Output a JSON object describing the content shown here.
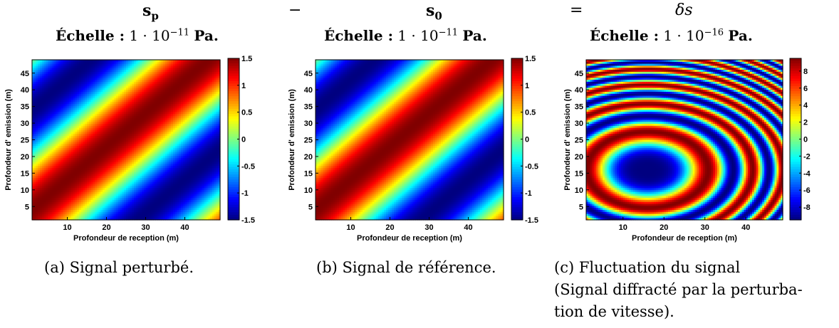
{
  "headers": [
    {
      "symbol": "s",
      "sub": "p",
      "op": "−",
      "scale_word": "Échelle :",
      "scale_base": "1 · 10",
      "scale_exp": "−11",
      "scale_unit": "Pa."
    },
    {
      "symbol": "s",
      "sub": "0",
      "op": "=",
      "scale_word": "Échelle :",
      "scale_base": "1 · 10",
      "scale_exp": "−11",
      "scale_unit": "Pa."
    },
    {
      "symbol": "δs",
      "sub": "",
      "op": "",
      "scale_word": "Échelle :",
      "scale_base": "1 · 10",
      "scale_exp": "−16",
      "scale_unit": "Pa."
    }
  ],
  "captions": [
    {
      "label": "(a) Signal perturbé."
    },
    {
      "label": "(b) Signal de référence."
    },
    {
      "label": "(c) Fluctuation du signal",
      "line2": "(Signal diffracté par la perturba-",
      "line3": "tion de vitesse)."
    }
  ],
  "chart_data": [
    {
      "type": "heatmap",
      "title": "",
      "xlabel": "Profondeur de reception (m)",
      "ylabel": "Profondeur d' emission (m)",
      "xlim": [
        1,
        49
      ],
      "ylim": [
        1,
        49
      ],
      "xticks": [
        10,
        20,
        30,
        40
      ],
      "yticks": [
        5,
        10,
        15,
        20,
        25,
        30,
        35,
        40,
        45
      ],
      "colorbar": {
        "range": [
          -1.5,
          1.5
        ],
        "ticks": [
          "1.5",
          "1",
          "0.5",
          "0",
          "-0.5",
          "-1",
          "-1.5"
        ]
      },
      "colormap": "jet",
      "field": "cos(2π(x−y+3)/60)·1.5"
    },
    {
      "type": "heatmap",
      "title": "",
      "xlabel": "Profondeur de reception (m)",
      "ylabel": "Profondeur d' emission (m)",
      "xlim": [
        1,
        49
      ],
      "ylim": [
        1,
        49
      ],
      "xticks": [
        10,
        20,
        30,
        40
      ],
      "yticks": [
        5,
        10,
        15,
        20,
        25,
        30,
        35,
        40,
        45
      ],
      "colorbar": {
        "range": [
          -1.5,
          1.5
        ],
        "ticks": [
          "1.5",
          "1",
          "0.5",
          "0",
          "-0.5",
          "-1",
          "-1.5"
        ]
      },
      "colormap": "jet",
      "field": "cos(2π(x−y+3)/60)·1.5"
    },
    {
      "type": "heatmap",
      "title": "",
      "xlabel": "Profondeur de reception (m)",
      "ylabel": "Profondeur d' emission (m)",
      "xlim": [
        1,
        49
      ],
      "ylim": [
        1,
        49
      ],
      "xticks": [
        10,
        20,
        30,
        40
      ],
      "yticks": [
        5,
        10,
        15,
        20,
        25,
        30,
        35,
        40,
        45
      ],
      "colorbar": {
        "range": [
          -9.5,
          9.5
        ],
        "ticks": [
          "8",
          "6",
          "4",
          "2",
          "0",
          "-2",
          "-4",
          "-6",
          "-8"
        ]
      },
      "colormap": "jet",
      "field": "elliptical rings centred at (16, 16)"
    }
  ]
}
